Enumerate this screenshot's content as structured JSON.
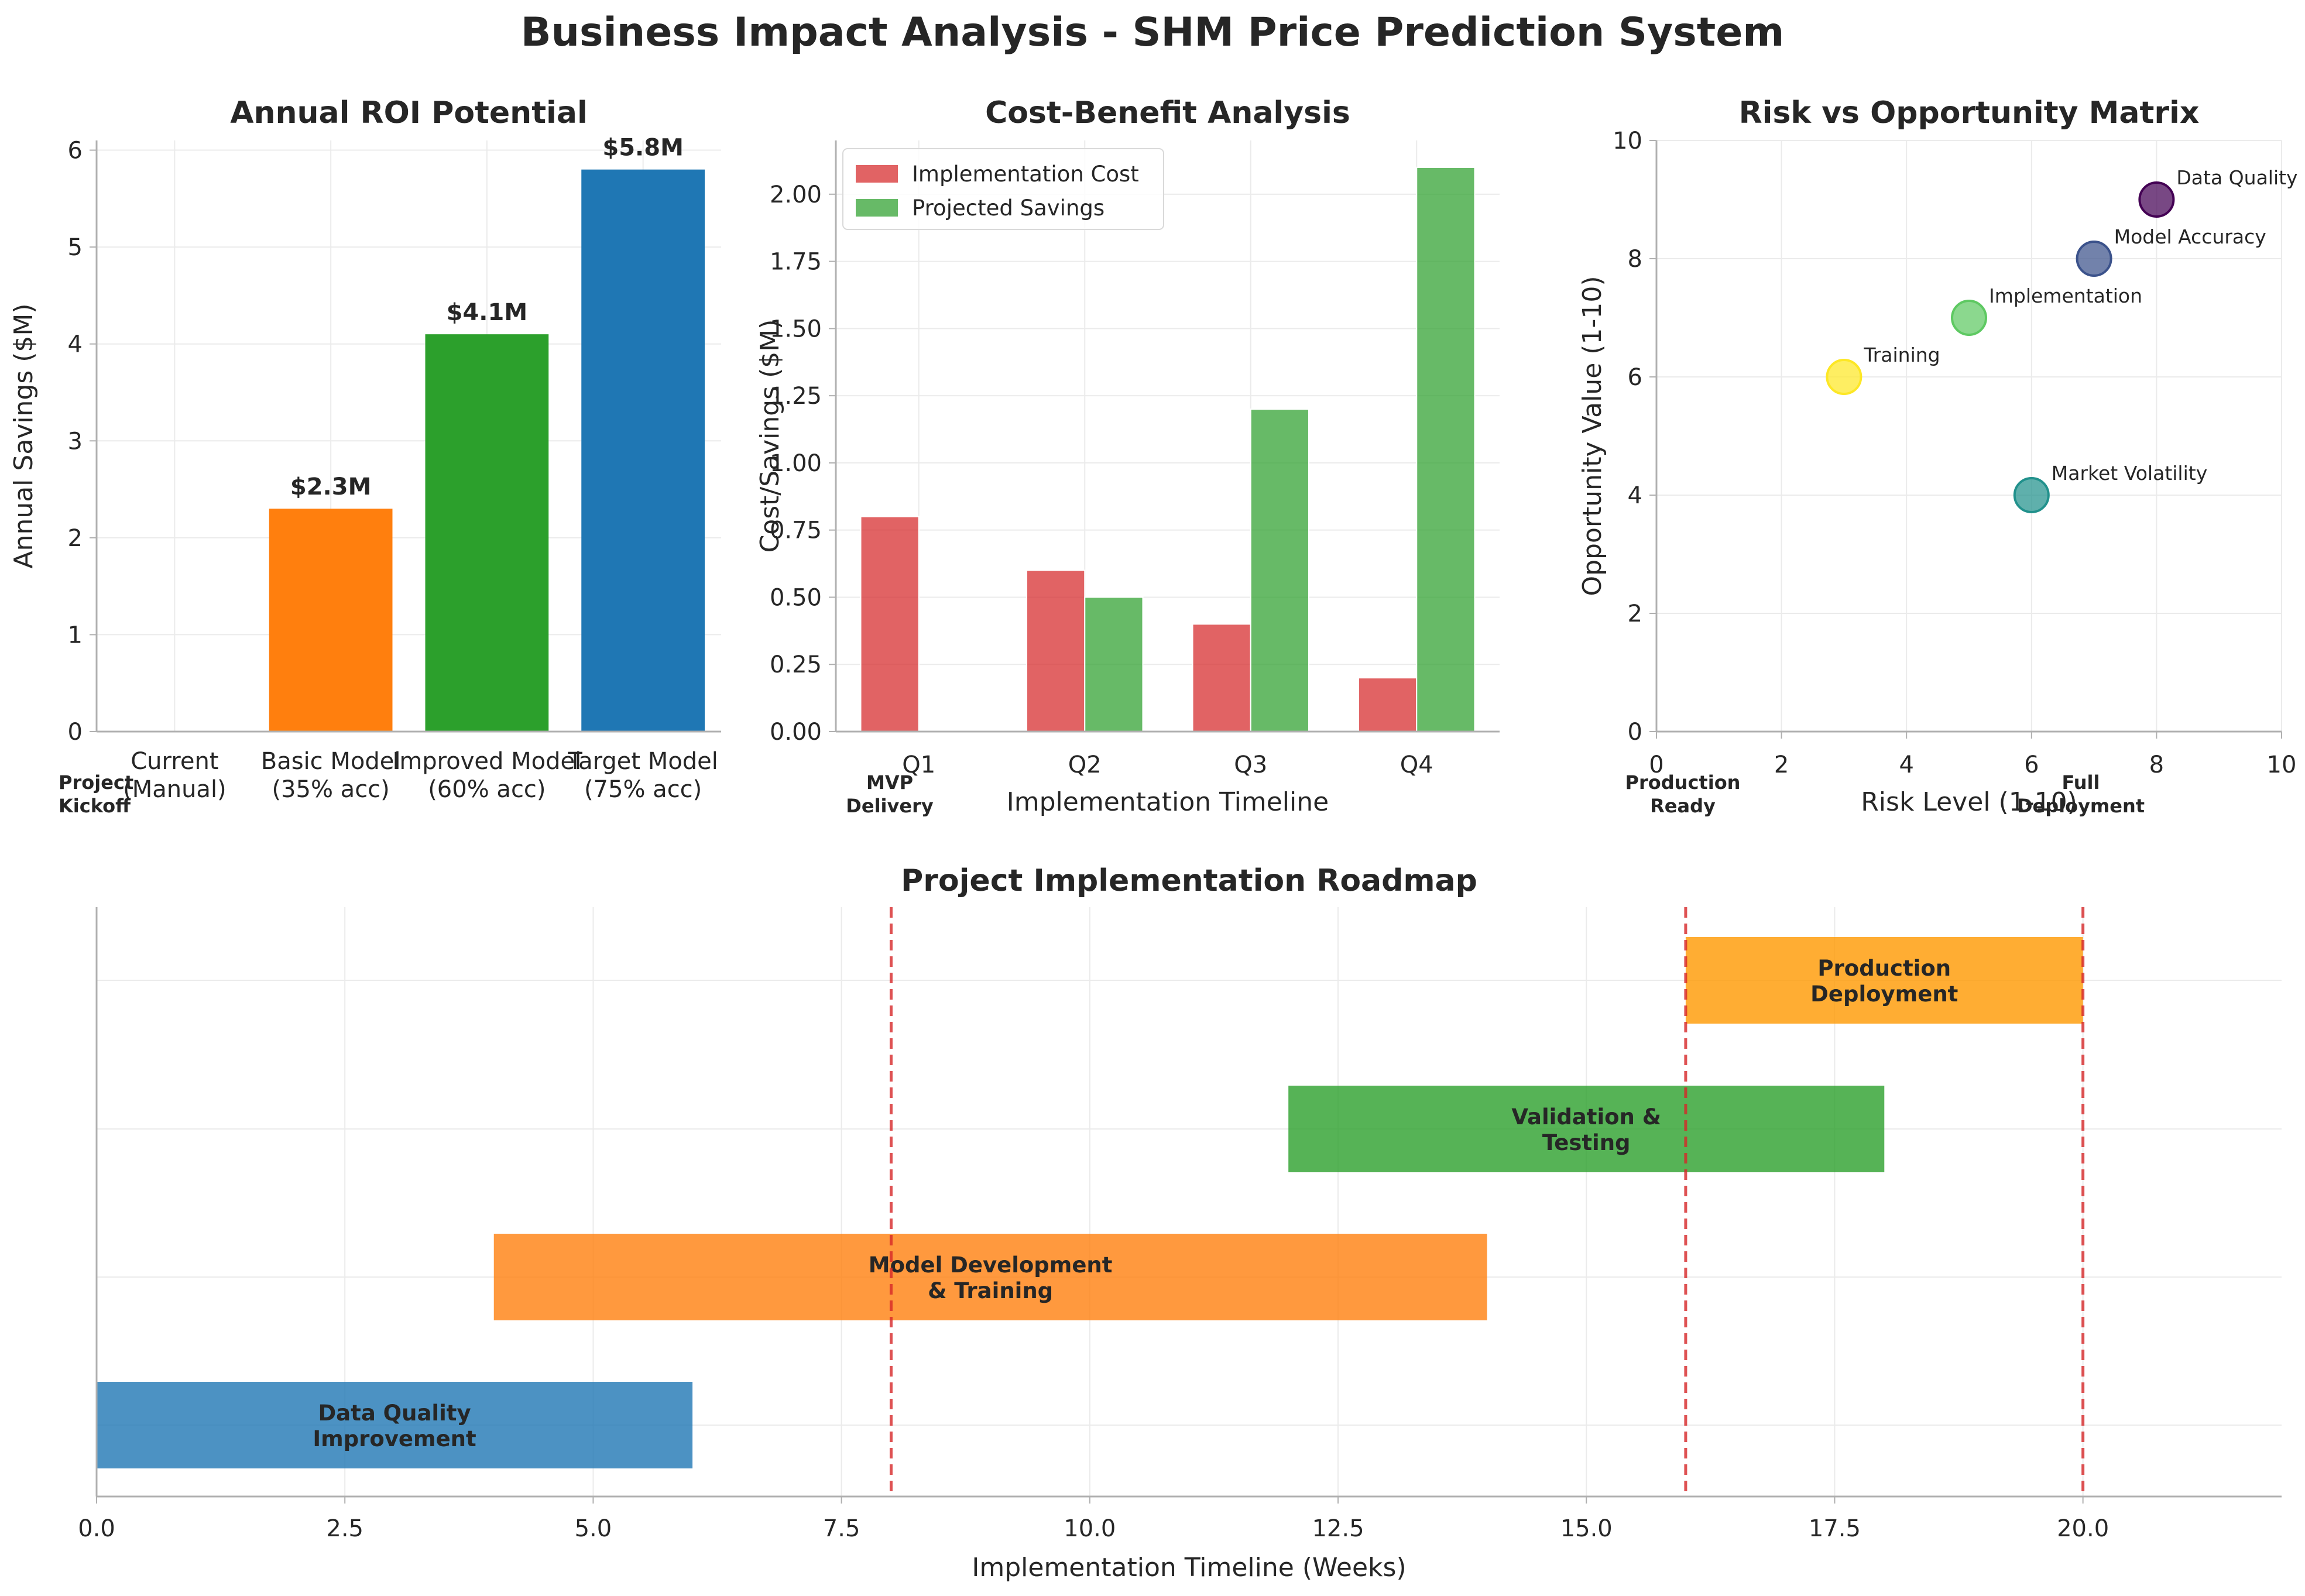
{
  "figure": {
    "suptitle": "Business Impact Analysis - SHM Price Prediction System"
  },
  "chart_data": [
    {
      "id": "roi",
      "type": "bar",
      "title": "Annual ROI Potential",
      "xlabel": "",
      "ylabel": "Annual Savings ($M)",
      "ylim": [
        0,
        6.1
      ],
      "yticks": [
        "0",
        "1",
        "2",
        "3",
        "4",
        "5",
        "6"
      ],
      "categories": [
        "Current\n(Manual)",
        "Basic Model\n(35% acc)",
        "Improved Model\n(60% acc)",
        "Target Model\n(75% acc)"
      ],
      "values": [
        0,
        2.3,
        4.1,
        5.8
      ],
      "data_labels": [
        "",
        "$2.3M",
        "$4.1M",
        "$5.8M"
      ],
      "colors": [
        "#d62728",
        "#ff7f0e",
        "#2ca02c",
        "#1f77b4"
      ],
      "grid": true
    },
    {
      "id": "cost_benefit",
      "type": "bar",
      "title": "Cost-Benefit Analysis",
      "xlabel": "Implementation Timeline",
      "ylabel": "Cost/Savings ($M)",
      "ylim": [
        0,
        2.2
      ],
      "yticks": [
        "0.00",
        "0.25",
        "0.50",
        "0.75",
        "1.00",
        "1.25",
        "1.50",
        "1.75",
        "2.00"
      ],
      "categories": [
        "Q1",
        "Q2",
        "Q3",
        "Q4"
      ],
      "series": [
        {
          "name": "Implementation Cost",
          "values": [
            0.8,
            0.6,
            0.4,
            0.2
          ],
          "color": "#d62728"
        },
        {
          "name": "Projected Savings",
          "values": [
            0,
            0.5,
            1.2,
            2.1
          ],
          "color": "#2ca02c"
        }
      ],
      "legend": "top-left",
      "grid": true
    },
    {
      "id": "risk",
      "type": "scatter",
      "title": "Risk vs Opportunity Matrix",
      "xlabel": "Risk Level (1-10)",
      "ylabel": "Opportunity Value (1-10)",
      "xlim": [
        0,
        10
      ],
      "ylim": [
        0,
        10
      ],
      "xticks": [
        "0",
        "2",
        "4",
        "6",
        "8",
        "10"
      ],
      "yticks": [
        "0",
        "2",
        "4",
        "6",
        "8",
        "10"
      ],
      "points": [
        {
          "label": "Data Quality",
          "x": 8,
          "y": 9,
          "color": "#440154"
        },
        {
          "label": "Model Accuracy",
          "x": 7,
          "y": 8,
          "color": "#3b528b"
        },
        {
          "label": "Market Volatility",
          "x": 6,
          "y": 4,
          "color": "#21918c"
        },
        {
          "label": "Implementation",
          "x": 5,
          "y": 7,
          "color": "#5ec962"
        },
        {
          "label": "Training",
          "x": 3,
          "y": 6,
          "color": "#fde725"
        }
      ],
      "grid": true
    },
    {
      "id": "roadmap",
      "type": "bar",
      "title": "Project Implementation Roadmap",
      "xlabel": "Implementation Timeline (Weeks)",
      "ylabel": "",
      "xlim": [
        0,
        22
      ],
      "xticks": [
        "0.0",
        "2.5",
        "5.0",
        "7.5",
        "10.0",
        "12.5",
        "15.0",
        "17.5",
        "20.0"
      ],
      "tasks": [
        {
          "label": "Data Quality\nImprovement",
          "start": 0,
          "end": 6,
          "color": "#1f77b4"
        },
        {
          "label": "Model Development\n& Training",
          "start": 4,
          "end": 14,
          "color": "#ff7f0e"
        },
        {
          "label": "Validation &\nTesting",
          "start": 12,
          "end": 18,
          "color": "#2ca02c"
        },
        {
          "label": "Production\nDeployment",
          "start": 16,
          "end": 20,
          "color": "#ff9900"
        }
      ],
      "milestones": [
        {
          "label": "Project\nKickoff",
          "week": 0
        },
        {
          "label": "MVP\nDelivery",
          "week": 8
        },
        {
          "label": "Production\nReady",
          "week": 16
        },
        {
          "label": "Full\nDeployment",
          "week": 20
        }
      ],
      "grid": true
    }
  ]
}
